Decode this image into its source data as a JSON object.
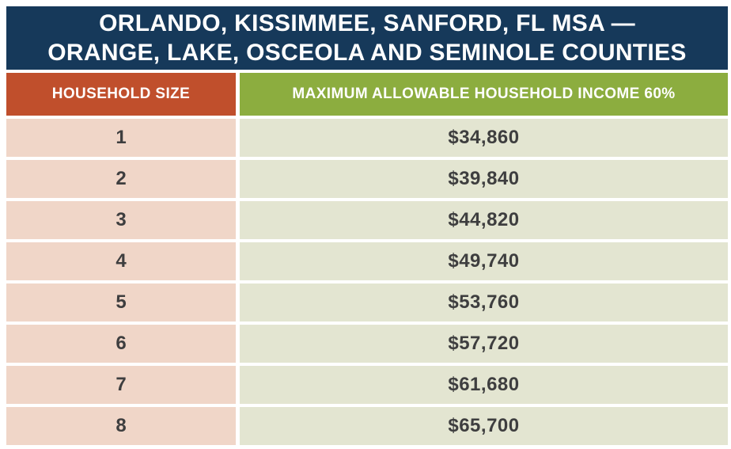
{
  "title": {
    "line1": "ORLANDO, KISSIMMEE, SANFORD, FL MSA —",
    "line2": "ORANGE, LAKE, OSCEOLA AND SEMINOLE COUNTIES"
  },
  "table": {
    "columns": [
      {
        "label": "HOUSEHOLD SIZE"
      },
      {
        "label": "MAXIMUM ALLOWABLE HOUSEHOLD INCOME 60%"
      }
    ],
    "rows": [
      {
        "household_size": "1",
        "max_income": "$34,860"
      },
      {
        "household_size": "2",
        "max_income": "$39,840"
      },
      {
        "household_size": "3",
        "max_income": "$44,820"
      },
      {
        "household_size": "4",
        "max_income": "$49,740"
      },
      {
        "household_size": "5",
        "max_income": "$53,760"
      },
      {
        "household_size": "6",
        "max_income": "$57,720"
      },
      {
        "household_size": "7",
        "max_income": "$61,680"
      },
      {
        "household_size": "8",
        "max_income": "$65,700"
      }
    ]
  },
  "chart_data": {
    "type": "table",
    "title": "ORLANDO, KISSIMMEE, SANFORD, FL MSA — ORANGE, LAKE, OSCEOLA AND SEMINOLE COUNTIES",
    "categories": [
      "1",
      "2",
      "3",
      "4",
      "5",
      "6",
      "7",
      "8"
    ],
    "values": [
      34860,
      39840,
      44820,
      49740,
      53760,
      57720,
      61680,
      65700
    ],
    "xlabel": "HOUSEHOLD SIZE",
    "ylabel": "MAXIMUM ALLOWABLE HOUSEHOLD INCOME 60%"
  },
  "colors": {
    "navy": "#16395a",
    "orange": "#c04f2c",
    "green": "#8cad3f",
    "pink_cell": "#f0d6c8",
    "green_cell": "#e3e5d1",
    "text_dark": "#3e3e3f"
  }
}
